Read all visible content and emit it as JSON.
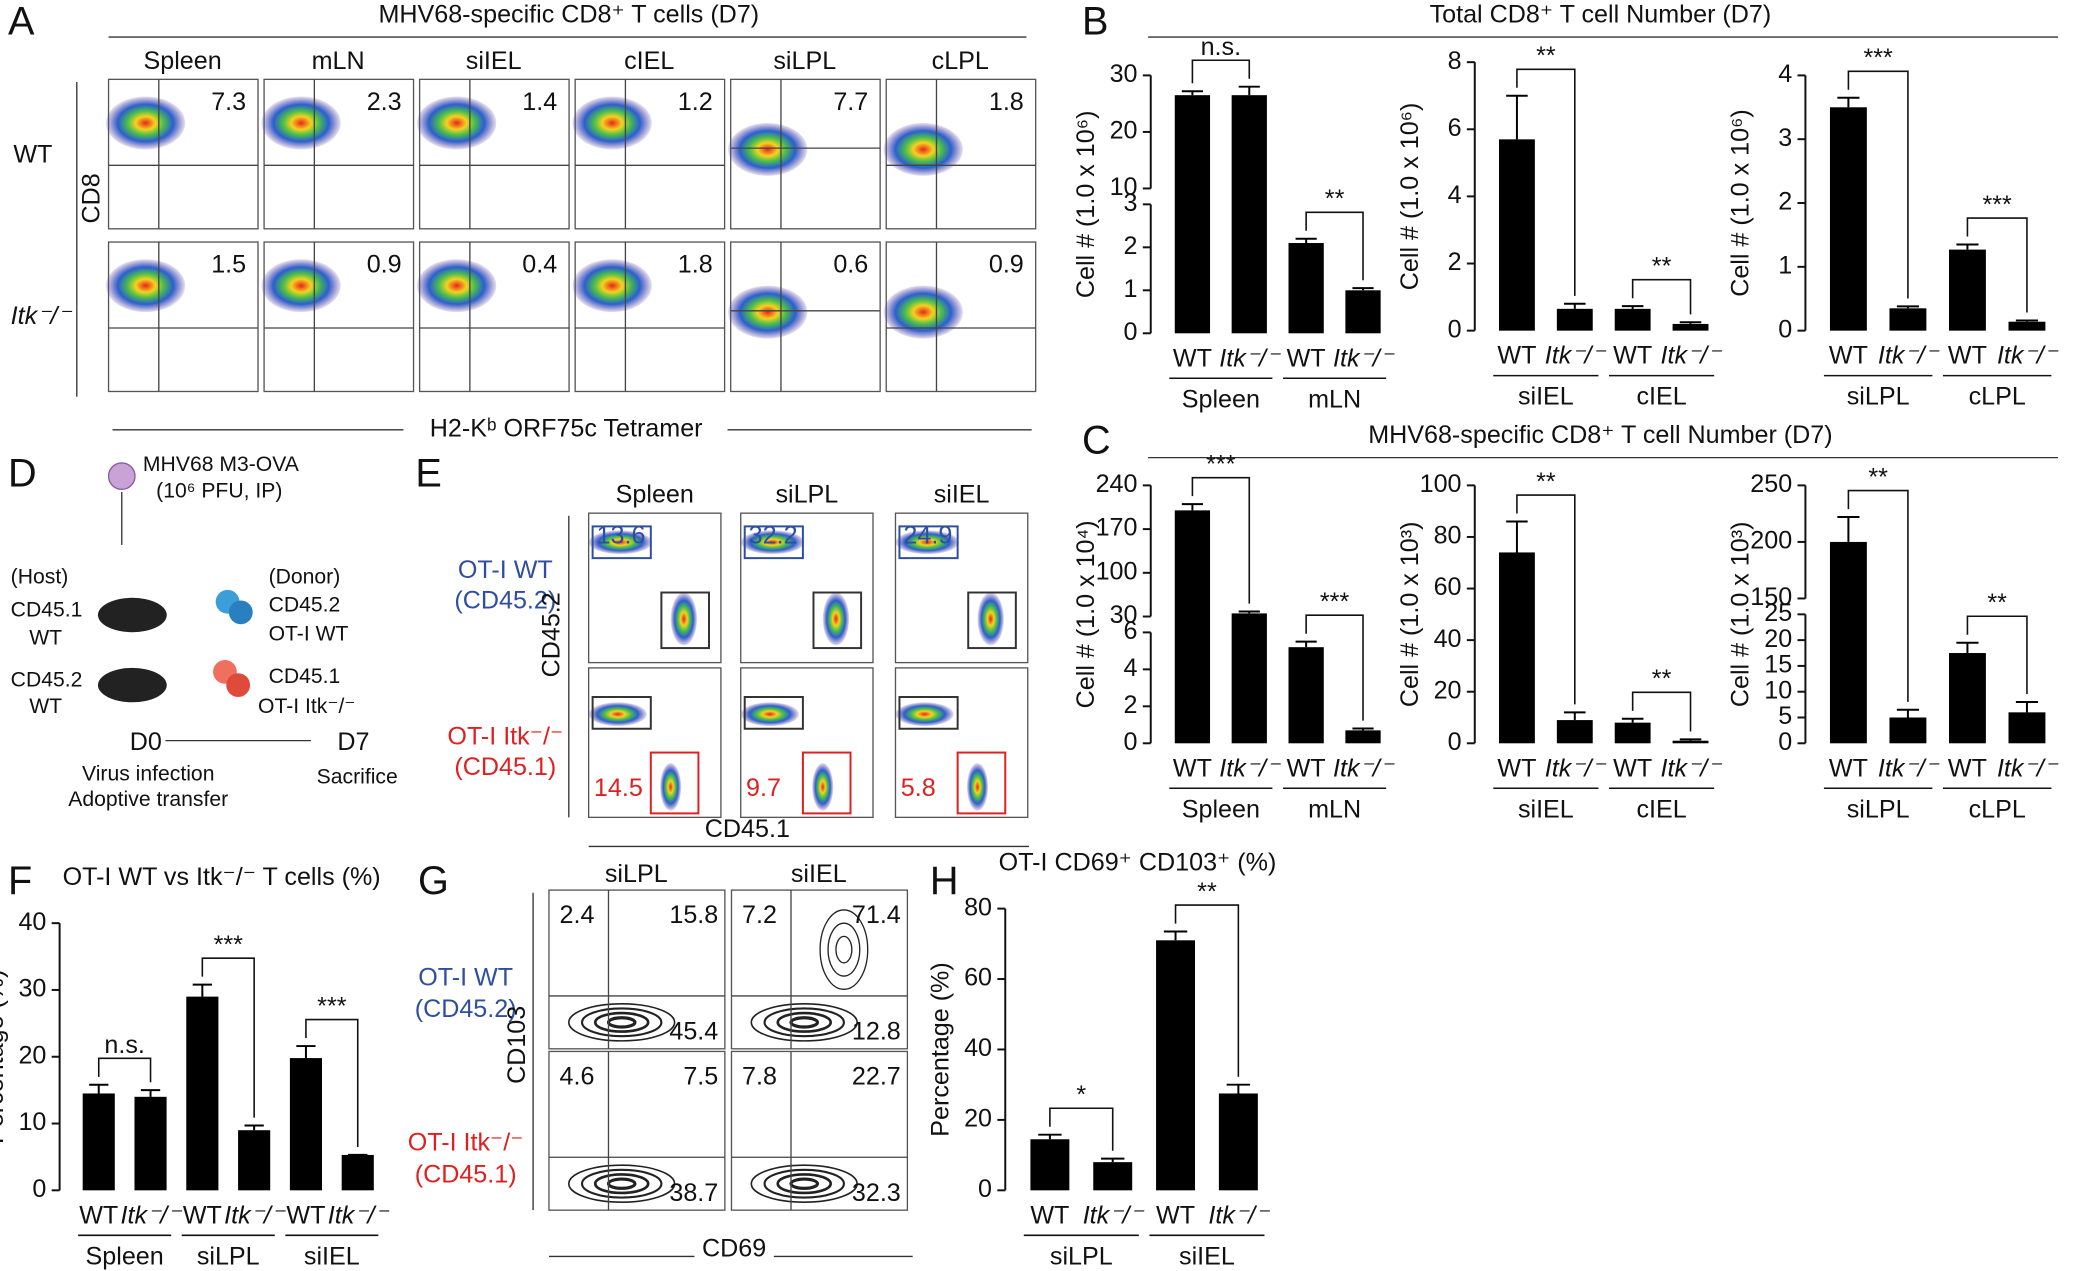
{
  "panels": {
    "A": {
      "letter": "A",
      "title": "MHV68-specific CD8⁺ T cells (D7)",
      "columns": [
        "Spleen",
        "mLN",
        "siIEL",
        "cIEL",
        "siLPL",
        "cLPL"
      ],
      "rows": [
        "WT",
        "Itk⁻/⁻"
      ],
      "values": [
        [
          7.3,
          2.3,
          1.4,
          1.2,
          7.7,
          1.8
        ],
        [
          1.5,
          0.9,
          0.4,
          1.8,
          0.6,
          0.9
        ]
      ],
      "y_label": "CD8",
      "x_label": "H2-Kᵇ ORF75c Tetramer"
    },
    "B": {
      "letter": "B",
      "title": "Total CD8⁺ T cell Number (D7)"
    },
    "C": {
      "letter": "C",
      "title": "MHV68-specific CD8⁺ T cell Number (D7)"
    },
    "D": {
      "letter": "D",
      "virus": "MHV68 M3-OVA",
      "dose": "(10⁶ PFU, IP)",
      "host": "(Host)",
      "donor": "(Donor)",
      "host_groups": [
        [
          "CD45.1",
          "WT"
        ],
        [
          "CD45.2",
          "WT"
        ]
      ],
      "donor_groups": [
        [
          "CD45.2",
          "OT-I WT"
        ],
        [
          "CD45.1",
          "OT-I Itk⁻/⁻"
        ]
      ],
      "start": "D0",
      "end": "D7",
      "start_events": [
        "Virus infection",
        "Adoptive transfer"
      ],
      "end_event": "Sacrifice"
    },
    "E": {
      "letter": "E",
      "columns": [
        "Spleen",
        "siLPL",
        "siIEL"
      ],
      "rows": [
        [
          "OT-I WT",
          "(CD45.2)"
        ],
        [
          "OT-I Itk⁻/⁻",
          "(CD45.1)"
        ]
      ],
      "values": [
        [
          13.6,
          32.2,
          24.9
        ],
        [
          14.5,
          9.7,
          5.8
        ]
      ],
      "y_label": "CD45.2",
      "x_label": "CD45.1"
    },
    "F": {
      "letter": "F"
    },
    "G": {
      "letter": "G",
      "columns": [
        "siLPL",
        "siIEL"
      ],
      "rows": [
        [
          "OT-I WT",
          "(CD45.2)"
        ],
        [
          "OT-I Itk⁻/⁻",
          "(CD45.1)"
        ]
      ],
      "values": [
        [
          [
            2.4,
            15.8,
            45.4
          ],
          [
            7.2,
            71.4,
            12.8
          ]
        ],
        [
          [
            4.6,
            7.5,
            38.7
          ],
          [
            7.8,
            22.7,
            32.3
          ]
        ]
      ],
      "y_label": "CD103",
      "x_label": "CD69"
    },
    "H": {
      "letter": "H"
    }
  },
  "chart_data": [
    {
      "type": "bar",
      "y_label": "Cell # (1.0 x 10⁶)",
      "categories": [
        "WT",
        "Itk⁻/⁻",
        "WT",
        "Itk⁻/⁻"
      ],
      "values": [
        26.5,
        26.5,
        2.1,
        1.0
      ],
      "errors": [
        0.7,
        1.5,
        0.1,
        0.05
      ],
      "groups": [
        "Spleen",
        "mLN"
      ],
      "significance": [
        "n.s.",
        "**"
      ],
      "ylim": [
        0,
        30
      ],
      "yticks": [
        0,
        1,
        2,
        3,
        10,
        20,
        30
      ],
      "axis_break": [
        3,
        10
      ],
      "color": "#000000"
    },
    {
      "type": "bar",
      "y_label": "Cell # (1.0 x 10⁶)",
      "categories": [
        "WT",
        "Itk⁻/⁻",
        "WT",
        "Itk⁻/⁻"
      ],
      "values": [
        5.7,
        0.65,
        0.65,
        0.2
      ],
      "errors": [
        1.3,
        0.15,
        0.08,
        0.05
      ],
      "groups": [
        "siIEL",
        "cIEL"
      ],
      "significance": [
        "**",
        "**"
      ],
      "ylim": [
        0,
        8
      ],
      "yticks": [
        0,
        2,
        4,
        6,
        8
      ],
      "color": "#000000"
    },
    {
      "type": "bar",
      "y_label": "Cell # (1.0 x 10⁶)",
      "categories": [
        "WT",
        "Itk⁻/⁻",
        "WT",
        "Itk⁻/⁻"
      ],
      "values": [
        3.5,
        0.35,
        1.27,
        0.14
      ],
      "errors": [
        0.15,
        0.03,
        0.08,
        0.02
      ],
      "groups": [
        "siLPL",
        "cLPL"
      ],
      "significance": [
        "***",
        "***"
      ],
      "ylim": [
        0,
        4
      ],
      "yticks": [
        0,
        1,
        2,
        3,
        4
      ],
      "color": "#000000"
    },
    {
      "type": "bar",
      "y_label": "Cell # (1.0 x 10⁴)",
      "categories": [
        "WT",
        "Itk⁻/⁻",
        "WT",
        "Itk⁻/⁻"
      ],
      "values": [
        200,
        35,
        5.2,
        0.7
      ],
      "errors": [
        10,
        3,
        0.3,
        0.1
      ],
      "groups": [
        "Spleen",
        "mLN"
      ],
      "significance": [
        "***",
        "***"
      ],
      "ylim": [
        0,
        240
      ],
      "yticks": [
        0,
        2,
        4,
        6,
        30,
        100,
        170,
        240
      ],
      "axis_break": [
        6,
        30
      ],
      "color": "#000000"
    },
    {
      "type": "bar",
      "y_label": "Cell # (1.0 x 10³)",
      "categories": [
        "WT",
        "Itk⁻/⁻",
        "WT",
        "Itk⁻/⁻"
      ],
      "values": [
        74,
        9,
        8,
        1
      ],
      "errors": [
        12,
        3,
        1.5,
        0.5
      ],
      "groups": [
        "siIEL",
        "cIEL"
      ],
      "significance": [
        "**",
        "**"
      ],
      "ylim": [
        0,
        100
      ],
      "yticks": [
        0,
        20,
        40,
        60,
        80,
        100
      ],
      "color": "#000000"
    },
    {
      "type": "bar",
      "y_label": "Cell # (1.0 x 10³)",
      "categories": [
        "WT",
        "Itk⁻/⁻",
        "WT",
        "Itk⁻/⁻"
      ],
      "values": [
        200,
        5,
        17.5,
        6
      ],
      "errors": [
        22,
        1.5,
        2,
        2
      ],
      "groups": [
        "siLPL",
        "cLPL"
      ],
      "significance": [
        "**",
        "**"
      ],
      "ylim": [
        0,
        250
      ],
      "yticks": [
        0,
        5,
        10,
        15,
        20,
        25,
        150,
        200,
        250
      ],
      "axis_break": [
        25,
        150
      ],
      "color": "#000000"
    },
    {
      "type": "bar",
      "title": "OT-I WT vs Itk⁻/⁻ T cells (%)",
      "y_label": "Percentage (%)",
      "categories": [
        "WT",
        "Itk⁻/⁻",
        "WT",
        "Itk⁻/⁻",
        "WT",
        "Itk⁻/⁻"
      ],
      "values": [
        14.5,
        14,
        29,
        9,
        19.8,
        5.3
      ],
      "errors": [
        1.3,
        1,
        1.8,
        0.7,
        1.8,
        0
      ],
      "groups": [
        "Spleen",
        "siLPL",
        "siIEL"
      ],
      "significance": [
        "n.s.",
        "***",
        "***"
      ],
      "ylim": [
        0,
        40
      ],
      "yticks": [
        0,
        10,
        20,
        30,
        40
      ],
      "color": "#000000"
    },
    {
      "type": "bar",
      "title": "OT-I CD69⁺ CD103⁺ (%)",
      "y_label": "Percentage (%)",
      "categories": [
        "WT",
        "Itk⁻/⁻",
        "WT",
        "Itk⁻/⁻"
      ],
      "values": [
        14.5,
        8,
        71,
        27.5
      ],
      "errors": [
        1.3,
        1,
        2.5,
        2.5
      ],
      "groups": [
        "siLPL",
        "siIEL"
      ],
      "significance": [
        "*",
        "**"
      ],
      "ylim": [
        0,
        80
      ],
      "yticks": [
        0,
        20,
        40,
        60,
        80
      ],
      "color": "#000000"
    }
  ]
}
